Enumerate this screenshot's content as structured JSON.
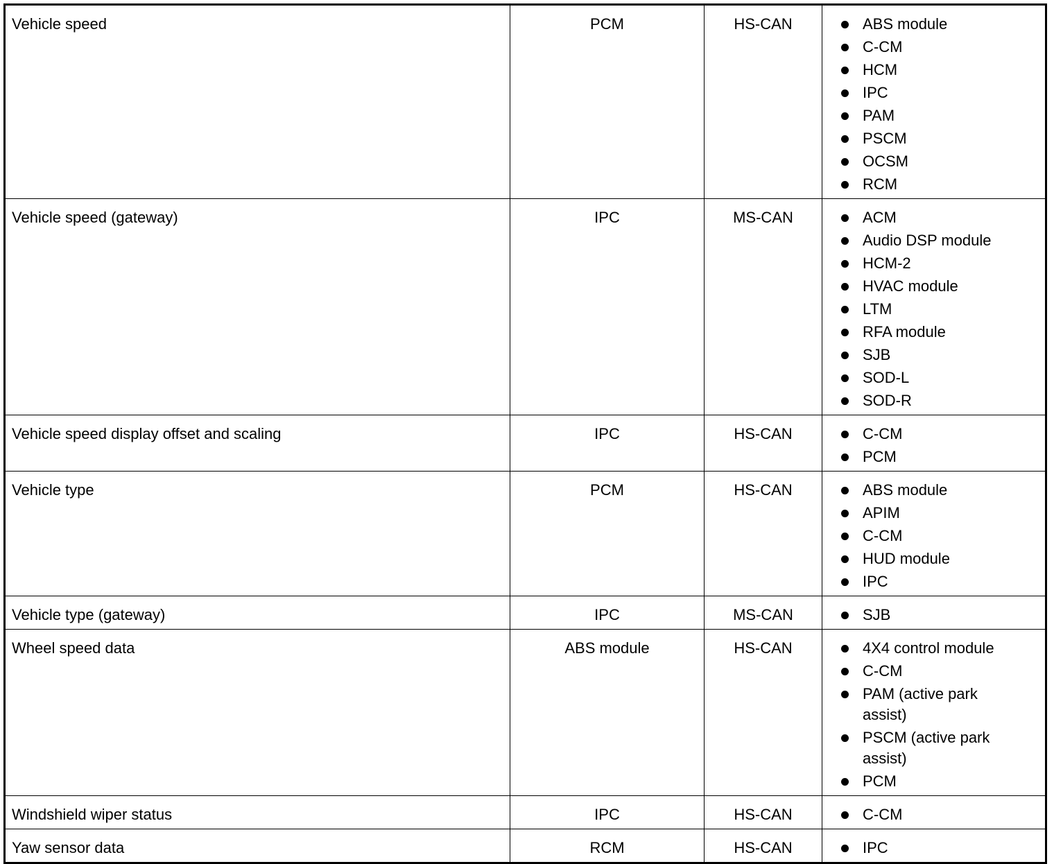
{
  "table": {
    "rows": [
      {
        "signal": "Vehicle speed",
        "originator": "PCM",
        "network": "HS-CAN",
        "receivers": [
          "ABS module",
          "C-CM",
          "HCM",
          "IPC",
          "PAM",
          "PSCM",
          "OCSM",
          "RCM"
        ]
      },
      {
        "signal": "Vehicle speed (gateway)",
        "originator": "IPC",
        "network": "MS-CAN",
        "receivers": [
          "ACM",
          "Audio DSP module",
          "HCM-2",
          "HVAC module",
          "LTM",
          "RFA module",
          "SJB",
          "SOD-L",
          "SOD-R"
        ]
      },
      {
        "signal": "Vehicle speed display offset and scaling",
        "originator": "IPC",
        "network": "HS-CAN",
        "receivers": [
          "C-CM",
          "PCM"
        ]
      },
      {
        "signal": "Vehicle type",
        "originator": "PCM",
        "network": "HS-CAN",
        "receivers": [
          "ABS module",
          "APIM",
          "C-CM",
          "HUD module",
          "IPC"
        ]
      },
      {
        "signal": "Vehicle type (gateway)",
        "originator": "IPC",
        "network": "MS-CAN",
        "receivers": [
          "SJB"
        ]
      },
      {
        "signal": "Wheel speed data",
        "originator": "ABS module",
        "network": "HS-CAN",
        "receivers": [
          "4X4 control module",
          "C-CM",
          "PAM (active park assist)",
          "PSCM (active park assist)",
          "PCM"
        ]
      },
      {
        "signal": "Windshield wiper status",
        "originator": "IPC",
        "network": "HS-CAN",
        "receivers": [
          "C-CM"
        ]
      },
      {
        "signal": "Yaw sensor data",
        "originator": "RCM",
        "network": "HS-CAN",
        "receivers": [
          "IPC"
        ]
      }
    ]
  }
}
